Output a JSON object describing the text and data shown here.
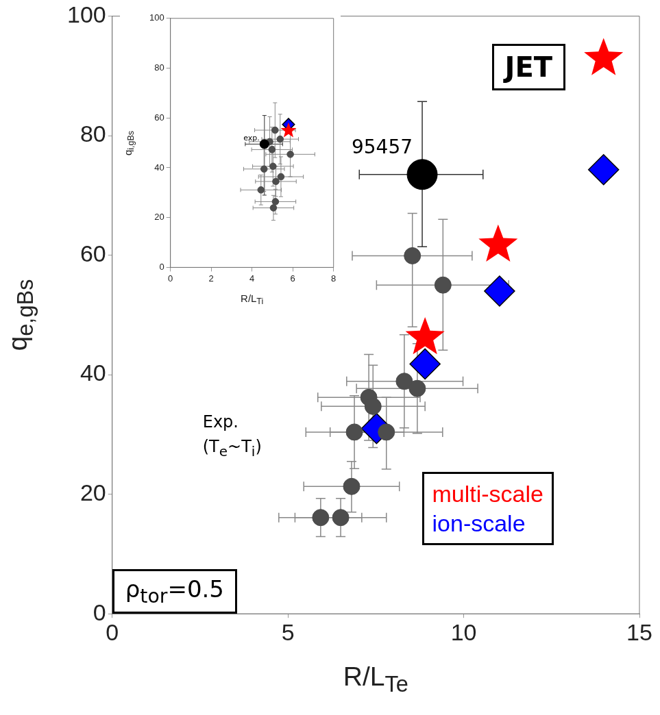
{
  "chart_data": [
    {
      "type": "scatter",
      "xlabel": "R/L$_{Te}$",
      "ylabel": "q$_{e,gBs}$",
      "xlim": [
        0,
        15
      ],
      "ylim": [
        0,
        100
      ],
      "xticks": [
        0,
        5,
        10,
        15
      ],
      "yticks": [
        0,
        20,
        40,
        60,
        80,
        100
      ],
      "legend": "bottom right",
      "grid": false,
      "annotations": [
        "JET",
        "ρ$_{tor}$=0.5",
        "Exp. (T$_{e}$~T$_{i}$)",
        {
          "text": "95457",
          "x": 8.82,
          "y": 73.5
        }
      ],
      "series": [
        {
          "color": "#000000",
          "marker": "circle",
          "x": [
            8.82
          ],
          "values": [
            73.5
          ],
          "xerrors": [
            [
              7.03,
              10.55
            ]
          ],
          "errors": [
            [
              61.4,
              85.7
            ]
          ]
        },
        {
          "color": "#4d4d4d",
          "marker": "circle",
          "x": [
            8.54,
            9.41,
            8.31,
            8.68,
            7.3,
            7.42,
            6.89,
            7.8,
            6.81,
            5.93,
            6.5
          ],
          "values": [
            59.9,
            55,
            38.9,
            37.7,
            36.2,
            34.7,
            30.4,
            30.4,
            21.3,
            16.1,
            16.1
          ],
          "xerrors": [
            [
              6.83,
              10.24
            ],
            [
              7.52,
              11.28
            ],
            [
              6.67,
              9.98
            ],
            [
              6.95,
              10.4
            ],
            [
              5.85,
              8.76
            ],
            [
              5.95,
              8.9
            ],
            [
              5.51,
              8.3
            ],
            [
              6.2,
              9.4
            ],
            [
              5.45,
              8.17
            ],
            [
              4.74,
              7.1
            ],
            [
              5.2,
              7.8
            ]
          ],
          "errors": [
            [
              48,
              67
            ],
            [
              44.1,
              66
            ],
            [
              31.1,
              46.7
            ],
            [
              30.2,
              45.2
            ],
            [
              29,
              43.4
            ],
            [
              27.8,
              41.6
            ],
            [
              24.3,
              36.5
            ],
            [
              24.2,
              36.2
            ],
            [
              17,
              25.5
            ],
            [
              12.9,
              19.3
            ],
            [
              12.9,
              19.3
            ]
          ]
        },
        {
          "name": "multi-scale",
          "color": "#ff0000",
          "marker": "star",
          "x": [
            13.98,
            10.98,
            8.9
          ],
          "values": [
            92.9,
            61.7,
            46.2
          ]
        },
        {
          "name": "ion-scale",
          "color": "#0000ff",
          "marker": "diamond",
          "x": [
            13.98,
            11.02,
            8.9,
            7.52
          ],
          "values": [
            74.3,
            54,
            41.8,
            31
          ]
        }
      ]
    },
    {
      "type": "scatter",
      "xlabel": "R/L$_{Ti}$",
      "ylabel": "q$_{i,gBs}$",
      "xlim": [
        0,
        8
      ],
      "ylim": [
        0,
        100
      ],
      "xticks": [
        0,
        2,
        4,
        6,
        8
      ],
      "yticks": [
        0,
        20,
        40,
        60,
        80,
        100
      ],
      "grid": false,
      "annotations": [
        {
          "text": "exp.",
          "x": 4.61,
          "y": 49.5
        }
      ],
      "series": [
        {
          "color": "#000000",
          "marker": "circle",
          "x": [
            4.61
          ],
          "values": [
            49.5
          ],
          "xerrors": [
            [
              3.67,
              5.5
            ]
          ],
          "errors": [
            [
              29,
              61
            ]
          ]
        },
        {
          "color": "#4d4d4d",
          "marker": "circle",
          "x": [
            5.13,
            5.38,
            4.87,
            4.98,
            5.88,
            4.59,
            5.03,
            5.42,
            5.17,
            4.44,
            5.15,
            5.05
          ],
          "values": [
            55.1,
            51.5,
            50.5,
            47.3,
            45.4,
            39.5,
            40.6,
            36.4,
            34.5,
            31.1,
            26.4,
            23.9
          ],
          "xerrors": [
            1,
            0.9,
            1,
            1,
            1.2,
            1,
            1,
            1.1,
            1,
            1,
            1,
            1
          ],
          "errors": [
            11,
            10,
            10,
            9,
            9,
            9,
            8,
            8,
            6,
            6,
            5,
            5
          ]
        },
        {
          "color": "#ff0000",
          "marker": "star",
          "x": [
            5.79
          ],
          "values": [
            54.9
          ]
        },
        {
          "color": "#0000ff",
          "marker": "diamond",
          "x": [
            5.79
          ],
          "values": [
            57.4
          ]
        }
      ]
    }
  ]
}
